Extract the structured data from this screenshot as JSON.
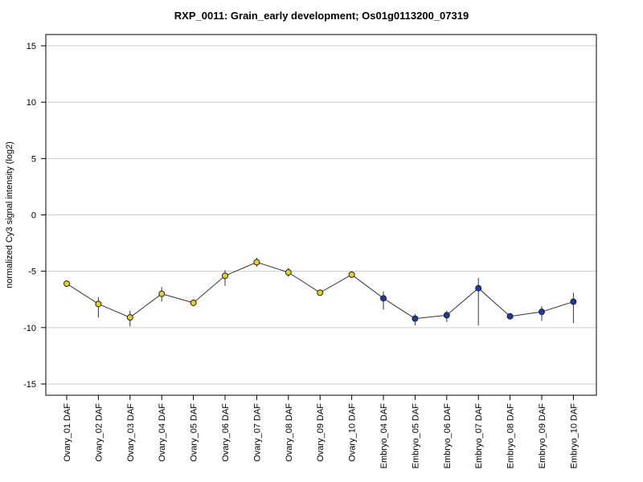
{
  "chart_data": {
    "type": "line",
    "title": "RXP_0011: Grain_early development; Os01g0113200_07319",
    "xlabel": "",
    "ylabel": "normalized Cy3 signal intensity (log2)",
    "ylim": [
      -16,
      16
    ],
    "yticks": [
      15,
      10,
      5,
      0,
      -5,
      -10,
      -15
    ],
    "grid": true,
    "categories": [
      "Ovary_01 DAF",
      "Ovary_02 DAF",
      "Ovary_03 DAF",
      "Ovary_04 DAF",
      "Ovary_05 DAF",
      "Ovary_06 DAF",
      "Ovary_07 DAF",
      "Ovary_08 DAF",
      "Ovary_09 DAF",
      "Ovary_10 DAF",
      "Embryo_04 DAF",
      "Embryo_05 DAF",
      "Embryo_06 DAF",
      "Embryo_07 DAF",
      "Embryo_08 DAF",
      "Embryo_09 DAF",
      "Embryo_10 DAF"
    ],
    "values": [
      -6.1,
      -7.9,
      -9.1,
      -7.0,
      -7.8,
      -5.4,
      -4.2,
      -5.1,
      -6.9,
      -5.3,
      -7.4,
      -9.2,
      -8.9,
      -6.5,
      -9.0,
      -8.6,
      -7.7
    ],
    "error_low": [
      -6.3,
      -9.1,
      -9.9,
      -7.7,
      -8.1,
      -6.3,
      -4.6,
      -5.5,
      -7.1,
      -5.5,
      -8.4,
      -9.8,
      -9.5,
      -9.8,
      -9.2,
      -9.4,
      -9.6
    ],
    "error_high": [
      -5.9,
      -7.3,
      -8.5,
      -6.4,
      -7.6,
      -4.9,
      -3.8,
      -4.7,
      -6.7,
      -5.1,
      -6.8,
      -8.8,
      -8.5,
      -5.6,
      -8.8,
      -8.1,
      -6.9
    ],
    "point_colors": [
      "#e8d21f",
      "#e8d21f",
      "#e8d21f",
      "#e8d21f",
      "#e8d21f",
      "#e8d21f",
      "#e8d21f",
      "#e8d21f",
      "#e8d21f",
      "#e8d21f",
      "#1a3aa8",
      "#1a3aa8",
      "#1a3aa8",
      "#1a3aa8",
      "#1a3aa8",
      "#1a3aa8",
      "#1a3aa8"
    ],
    "line_color": "#333333",
    "grid_color": "#cccccc"
  }
}
